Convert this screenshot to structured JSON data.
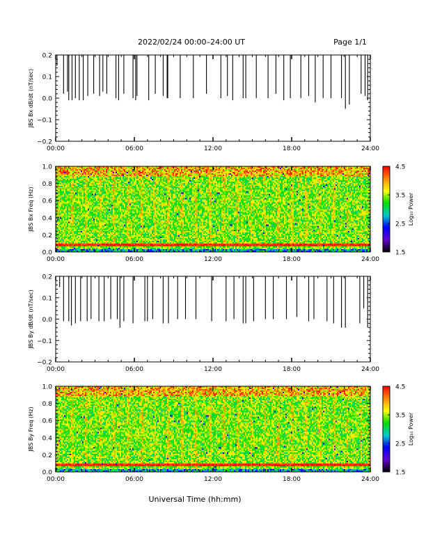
{
  "header": {
    "title": "2022/02/24  00:00–24:00 UT",
    "page": "Page 1/1"
  },
  "xaxis": {
    "label": "Universal Time (hh:mm)",
    "ticks": [
      "00:00",
      "06:00",
      "12:00",
      "18:00",
      "24:00"
    ],
    "range_hours": [
      0,
      24
    ]
  },
  "colorbar": {
    "label": "Log₁₀ Power",
    "ticks": [
      "1.5",
      "2.5",
      "3.5",
      "4.5"
    ],
    "range": [
      1.5,
      4.5
    ],
    "colors": [
      "#000000",
      "#6600cc",
      "#0000ff",
      "#00cccc",
      "#00dd00",
      "#ffff00",
      "#ff8800",
      "#ff0000"
    ]
  },
  "chart_data": [
    {
      "type": "line",
      "ylabel": "JBS Bx dB/dt (nT/sec)",
      "xlim": [
        0,
        24
      ],
      "ylim": [
        -0.2,
        0.2
      ],
      "yticks": [
        "0.2",
        "0.1",
        "0.0",
        "−0.1",
        "−0.2"
      ],
      "baseline": 0.2,
      "series": [
        {
          "spikes": [
            [
              0.1,
              0.15
            ],
            [
              0.6,
              0.02
            ],
            [
              0.9,
              0.03
            ],
            [
              1.0,
              -0.01
            ],
            [
              1.25,
              -0.01
            ],
            [
              1.5,
              0.0
            ],
            [
              1.8,
              -0.01
            ],
            [
              2.1,
              -0.01
            ],
            [
              2.45,
              0.01
            ],
            [
              2.9,
              0.02
            ],
            [
              3.35,
              0.01
            ],
            [
              3.6,
              0.03
            ],
            [
              3.9,
              0.02
            ],
            [
              4.6,
              0.0
            ],
            [
              4.8,
              -0.01
            ],
            [
              5.2,
              0.02
            ],
            [
              5.9,
              0.0
            ],
            [
              6.1,
              -0.01
            ],
            [
              6.2,
              0.01
            ],
            [
              7.1,
              -0.01
            ],
            [
              7.6,
              0.02
            ],
            [
              8.2,
              0.01
            ],
            [
              8.5,
              0.0
            ],
            [
              8.55,
              0.0
            ],
            [
              9.5,
              0.0
            ],
            [
              10.5,
              0.0
            ],
            [
              11.5,
              0.02
            ],
            [
              12.6,
              0.0
            ],
            [
              13.1,
              0.01
            ],
            [
              13.5,
              -0.01
            ],
            [
              14.3,
              0.0
            ],
            [
              14.5,
              0.0
            ],
            [
              15.3,
              0.0
            ],
            [
              16.2,
              0.0
            ],
            [
              16.8,
              0.02
            ],
            [
              17.4,
              -0.01
            ],
            [
              17.9,
              0.0
            ],
            [
              18.7,
              0.0
            ],
            [
              19.3,
              0.01
            ],
            [
              19.8,
              -0.02
            ],
            [
              20.4,
              0.0
            ],
            [
              21.0,
              0.0
            ],
            [
              21.8,
              0.0
            ],
            [
              22.1,
              -0.05
            ],
            [
              22.4,
              -0.03
            ],
            [
              23.3,
              0.02
            ],
            [
              23.6,
              0.01
            ],
            [
              23.8,
              -0.01
            ]
          ]
        }
      ]
    },
    {
      "type": "heatmap",
      "ylabel": "JBS Bx Freq (Hz)",
      "xlim": [
        0,
        24
      ],
      "ylim": [
        0.0,
        1.0
      ],
      "yticks": [
        "1.0",
        "0.8",
        "0.6",
        "0.4",
        "0.2",
        "0.0"
      ],
      "z_range": [
        1.5,
        4.5
      ],
      "features": {
        "background_log_power": 3.4,
        "narrowband_line_hz": 0.08,
        "narrowband_log_power": 4.5,
        "upper_band_hz": [
          0.88,
          1.0
        ],
        "upper_band_log_power": 3.9
      }
    },
    {
      "type": "line",
      "ylabel": "JBS By dB/dt (nT/sec)",
      "xlim": [
        0,
        24
      ],
      "ylim": [
        -0.2,
        0.2
      ],
      "yticks": [
        "0.2",
        "0.1",
        "0.0",
        "−0.1",
        "−0.2"
      ],
      "baseline": 0.2,
      "series": [
        {
          "spikes": [
            [
              0.3,
              0.15
            ],
            [
              0.6,
              -0.01
            ],
            [
              1.0,
              -0.01
            ],
            [
              1.2,
              -0.03
            ],
            [
              1.5,
              -0.02
            ],
            [
              1.9,
              -0.01
            ],
            [
              2.4,
              -0.01
            ],
            [
              2.7,
              -0.0
            ],
            [
              3.3,
              -0.01
            ],
            [
              3.7,
              -0.01
            ],
            [
              4.2,
              0.0
            ],
            [
              4.7,
              0.0
            ],
            [
              4.9,
              -0.04
            ],
            [
              5.2,
              -0.01
            ],
            [
              5.9,
              -0.02
            ],
            [
              6.8,
              -0.01
            ],
            [
              7.0,
              -0.01
            ],
            [
              7.4,
              0.0
            ],
            [
              8.2,
              -0.02
            ],
            [
              8.6,
              -0.02
            ],
            [
              9.3,
              0.0
            ],
            [
              9.9,
              0.0
            ],
            [
              10.7,
              0.0
            ],
            [
              11.9,
              -0.01
            ],
            [
              13.0,
              -0.01
            ],
            [
              13.6,
              0.0
            ],
            [
              14.3,
              -0.02
            ],
            [
              14.5,
              -0.02
            ],
            [
              15.1,
              -0.01
            ],
            [
              16.0,
              0.0
            ],
            [
              16.6,
              0.0
            ],
            [
              17.6,
              0.0
            ],
            [
              18.4,
              0.01
            ],
            [
              19.3,
              -0.01
            ],
            [
              19.7,
              0.0
            ],
            [
              20.7,
              -0.01
            ],
            [
              21.2,
              -0.02
            ],
            [
              21.8,
              -0.04
            ],
            [
              22.1,
              -0.04
            ],
            [
              23.2,
              -0.02
            ],
            [
              23.5,
              0.05
            ],
            [
              23.8,
              -0.04
            ]
          ]
        }
      ]
    },
    {
      "type": "heatmap",
      "ylabel": "JBS By Freq (Hz)",
      "xlim": [
        0,
        24
      ],
      "ylim": [
        0.0,
        1.0
      ],
      "yticks": [
        "1.0",
        "0.8",
        "0.6",
        "0.4",
        "0.2",
        "0.0"
      ],
      "z_range": [
        1.5,
        4.5
      ],
      "features": {
        "background_log_power": 3.4,
        "narrowband_line_hz": 0.08,
        "narrowband_log_power": 4.5,
        "upper_band_hz": [
          0.88,
          1.0
        ],
        "upper_band_log_power": 3.9
      }
    }
  ]
}
